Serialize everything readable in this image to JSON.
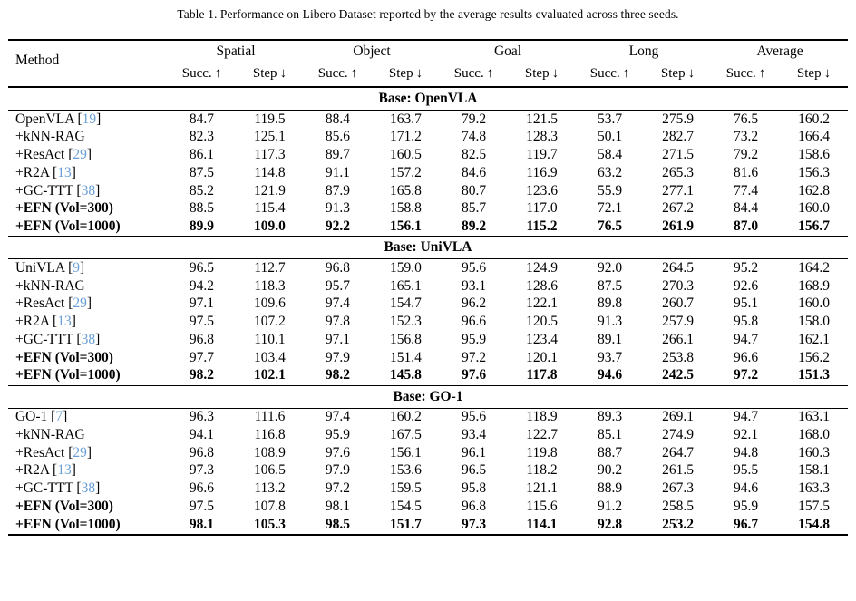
{
  "title": "Table 1. Performance on Libero Dataset reported by the average results evaluated across three seeds.",
  "colors": {
    "citation_blue": "#6a9fd6",
    "text": "#000000",
    "background": "#ffffff"
  },
  "table": {
    "method_header": "Method",
    "groups": [
      {
        "label": "Spatial"
      },
      {
        "label": "Object"
      },
      {
        "label": "Goal"
      },
      {
        "label": "Long"
      },
      {
        "label": "Average"
      }
    ],
    "subheaders": {
      "succ": "Succ.",
      "succ_arrow": "↑",
      "step": "Step",
      "step_arrow": "↓"
    },
    "sections": [
      {
        "header": "Base: OpenVLA",
        "rows": [
          {
            "method": "OpenVLA",
            "cite": "19",
            "bold_method": false,
            "bold_values": false,
            "values": [
              "84.7",
              "119.5",
              "88.4",
              "163.7",
              "79.2",
              "121.5",
              "53.7",
              "275.9",
              "76.5",
              "160.2"
            ]
          },
          {
            "method": "+kNN-RAG",
            "cite": null,
            "bold_method": false,
            "bold_values": false,
            "values": [
              "82.3",
              "125.1",
              "85.6",
              "171.2",
              "74.8",
              "128.3",
              "50.1",
              "282.7",
              "73.2",
              "166.4"
            ]
          },
          {
            "method": "+ResAct",
            "cite": "29",
            "bold_method": false,
            "bold_values": false,
            "values": [
              "86.1",
              "117.3",
              "89.7",
              "160.5",
              "82.5",
              "119.7",
              "58.4",
              "271.5",
              "79.2",
              "158.6"
            ]
          },
          {
            "method": "+R2A",
            "cite": "13",
            "bold_method": false,
            "bold_values": false,
            "values": [
              "87.5",
              "114.8",
              "91.1",
              "157.2",
              "84.6",
              "116.9",
              "63.2",
              "265.3",
              "81.6",
              "156.3"
            ]
          },
          {
            "method": "+GC-TTT",
            "cite": "38",
            "bold_method": false,
            "bold_values": false,
            "values": [
              "85.2",
              "121.9",
              "87.9",
              "165.8",
              "80.7",
              "123.6",
              "55.9",
              "277.1",
              "77.4",
              "162.8"
            ]
          },
          {
            "method": "+EFN (Vol=300)",
            "cite": null,
            "bold_method": true,
            "bold_values": false,
            "values": [
              "88.5",
              "115.4",
              "91.3",
              "158.8",
              "85.7",
              "117.0",
              "72.1",
              "267.2",
              "84.4",
              "160.0"
            ]
          },
          {
            "method": "+EFN (Vol=1000)",
            "cite": null,
            "bold_method": true,
            "bold_values": true,
            "values": [
              "89.9",
              "109.0",
              "92.2",
              "156.1",
              "89.2",
              "115.2",
              "76.5",
              "261.9",
              "87.0",
              "156.7"
            ]
          }
        ]
      },
      {
        "header": "Base: UniVLA",
        "rows": [
          {
            "method": "UniVLA",
            "cite": "9",
            "bold_method": false,
            "bold_values": false,
            "values": [
              "96.5",
              "112.7",
              "96.8",
              "159.0",
              "95.6",
              "124.9",
              "92.0",
              "264.5",
              "95.2",
              "164.2"
            ]
          },
          {
            "method": "+kNN-RAG",
            "cite": null,
            "bold_method": false,
            "bold_values": false,
            "values": [
              "94.2",
              "118.3",
              "95.7",
              "165.1",
              "93.1",
              "128.6",
              "87.5",
              "270.3",
              "92.6",
              "168.9"
            ]
          },
          {
            "method": "+ResAct",
            "cite": "29",
            "bold_method": false,
            "bold_values": false,
            "values": [
              "97.1",
              "109.6",
              "97.4",
              "154.7",
              "96.2",
              "122.1",
              "89.8",
              "260.7",
              "95.1",
              "160.0"
            ]
          },
          {
            "method": "+R2A",
            "cite": "13",
            "bold_method": false,
            "bold_values": false,
            "values": [
              "97.5",
              "107.2",
              "97.8",
              "152.3",
              "96.6",
              "120.5",
              "91.3",
              "257.9",
              "95.8",
              "158.0"
            ]
          },
          {
            "method": "+GC-TTT",
            "cite": "38",
            "bold_method": false,
            "bold_values": false,
            "values": [
              "96.8",
              "110.1",
              "97.1",
              "156.8",
              "95.9",
              "123.4",
              "89.1",
              "266.1",
              "94.7",
              "162.1"
            ]
          },
          {
            "method": "+EFN (Vol=300)",
            "cite": null,
            "bold_method": true,
            "bold_values": false,
            "values": [
              "97.7",
              "103.4",
              "97.9",
              "151.4",
              "97.2",
              "120.1",
              "93.7",
              "253.8",
              "96.6",
              "156.2"
            ]
          },
          {
            "method": "+EFN (Vol=1000)",
            "cite": null,
            "bold_method": true,
            "bold_values": true,
            "values": [
              "98.2",
              "102.1",
              "98.2",
              "145.8",
              "97.6",
              "117.8",
              "94.6",
              "242.5",
              "97.2",
              "151.3"
            ]
          }
        ]
      },
      {
        "header": "Base: GO-1",
        "rows": [
          {
            "method": "GO-1",
            "cite": "7",
            "bold_method": false,
            "bold_values": false,
            "values": [
              "96.3",
              "111.6",
              "97.4",
              "160.2",
              "95.6",
              "118.9",
              "89.3",
              "269.1",
              "94.7",
              "163.1"
            ]
          },
          {
            "method": "+kNN-RAG",
            "cite": null,
            "bold_method": false,
            "bold_values": false,
            "values": [
              "94.1",
              "116.8",
              "95.9",
              "167.5",
              "93.4",
              "122.7",
              "85.1",
              "274.9",
              "92.1",
              "168.0"
            ]
          },
          {
            "method": "+ResAct",
            "cite": "29",
            "bold_method": false,
            "bold_values": false,
            "values": [
              "96.8",
              "108.9",
              "97.6",
              "156.1",
              "96.1",
              "119.8",
              "88.7",
              "264.7",
              "94.8",
              "160.3"
            ]
          },
          {
            "method": "+R2A",
            "cite": "13",
            "bold_method": false,
            "bold_values": false,
            "values": [
              "97.3",
              "106.5",
              "97.9",
              "153.6",
              "96.5",
              "118.2",
              "90.2",
              "261.5",
              "95.5",
              "158.1"
            ]
          },
          {
            "method": "+GC-TTT",
            "cite": "38",
            "bold_method": false,
            "bold_values": false,
            "values": [
              "96.6",
              "113.2",
              "97.2",
              "159.5",
              "95.8",
              "121.1",
              "88.9",
              "267.3",
              "94.6",
              "163.3"
            ]
          },
          {
            "method": "+EFN (Vol=300)",
            "cite": null,
            "bold_method": true,
            "bold_values": false,
            "values": [
              "97.5",
              "107.8",
              "98.1",
              "154.5",
              "96.8",
              "115.6",
              "91.2",
              "258.5",
              "95.9",
              "157.5"
            ]
          },
          {
            "method": "+EFN (Vol=1000)",
            "cite": null,
            "bold_method": true,
            "bold_values": true,
            "values": [
              "98.1",
              "105.3",
              "98.5",
              "151.7",
              "97.3",
              "114.1",
              "92.8",
              "253.2",
              "96.7",
              "154.8"
            ]
          }
        ]
      }
    ]
  }
}
